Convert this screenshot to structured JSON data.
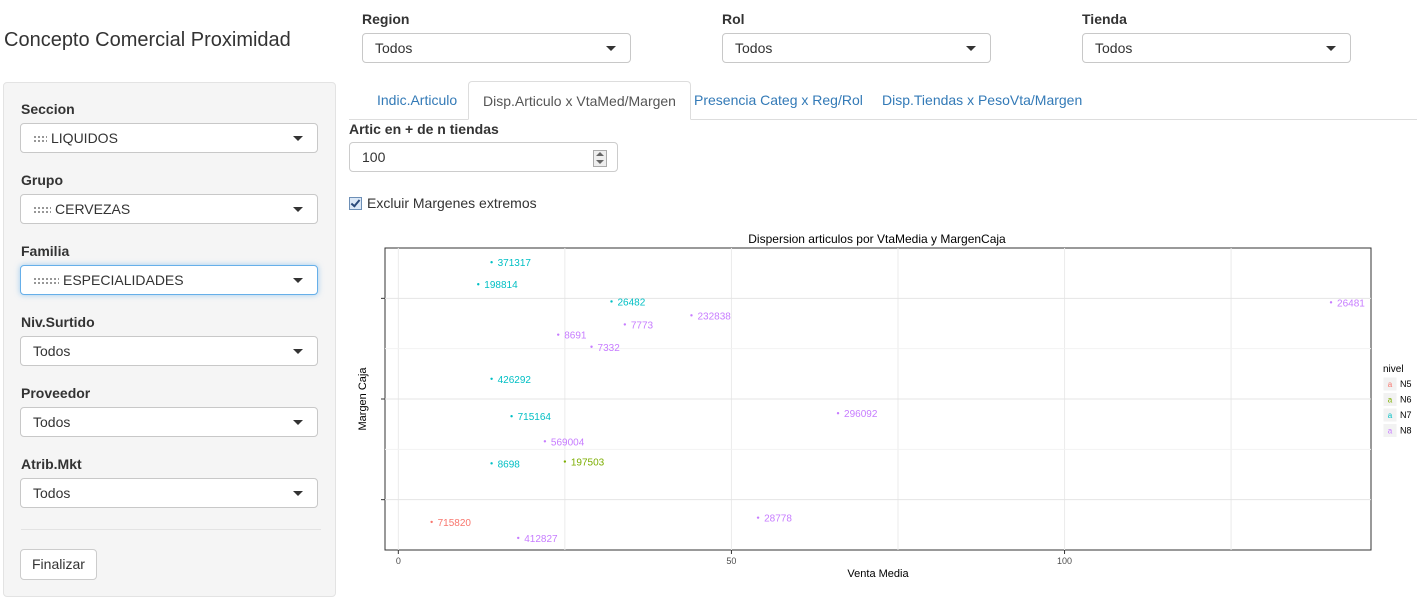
{
  "app_title": "Concepto Comercial Proximidad",
  "top_filters": {
    "region": {
      "label": "Region",
      "value": "Todos"
    },
    "rol": {
      "label": "Rol",
      "value": "Todos"
    },
    "tienda": {
      "label": "Tienda",
      "value": "Todos"
    }
  },
  "sidebar": {
    "seccion": {
      "label": "Seccion",
      "value": "LIQUIDOS"
    },
    "grupo": {
      "label": "Grupo",
      "value": "CERVEZAS"
    },
    "familia": {
      "label": "Familia",
      "value": "ESPECIALIDADES"
    },
    "surtido": {
      "label": "Niv.Surtido",
      "value": "Todos"
    },
    "proveedor": {
      "label": "Proveedor",
      "value": "Todos"
    },
    "atrib": {
      "label": "Atrib.Mkt",
      "value": "Todos"
    },
    "finalizar": "Finalizar"
  },
  "tabs": [
    {
      "label": "Indic.Articulo",
      "active": false
    },
    {
      "label": "Disp.Articulo x VtaMed/Margen",
      "active": true
    },
    {
      "label": "Presencia Categ x Reg/Rol",
      "active": false
    },
    {
      "label": "Disp.Tiendas x PesoVta/Margen",
      "active": false
    }
  ],
  "min_tiendas": {
    "label": "Artic en + de n tiendas",
    "value": "100"
  },
  "excluir": {
    "label": "Excluir Margenes extremos",
    "checked": true
  },
  "colors": {
    "N5": "#f8766d",
    "N6": "#7cae00",
    "N7": "#00bfc4",
    "N8": "#c77cff"
  },
  "chart_data": {
    "type": "scatter",
    "title": "Dispersion articulos por VtaMedia y MargenCaja",
    "xlabel": "Venta Media",
    "ylabel": "Margen Caja",
    "xticks": [
      0,
      50,
      100
    ],
    "xlim": [
      -2,
      146
    ],
    "ylim": [
      0,
      1
    ],
    "y_tick_labels_visible": false,
    "y_positions_are_relative": true,
    "grid": true,
    "legend": {
      "title": "nivel",
      "entries": [
        "N5",
        "N6",
        "N7",
        "N8"
      ],
      "position": "right"
    },
    "points": [
      {
        "label": "371317",
        "x": 14,
        "y": 0.953,
        "nivel": "N7"
      },
      {
        "label": "198814",
        "x": 12,
        "y": 0.88,
        "nivel": "N7"
      },
      {
        "label": "26482",
        "x": 32,
        "y": 0.823,
        "nivel": "N7"
      },
      {
        "label": "26481",
        "x": 140,
        "y": 0.82,
        "nivel": "N8"
      },
      {
        "label": "232838",
        "x": 44,
        "y": 0.777,
        "nivel": "N8"
      },
      {
        "label": "7773",
        "x": 34,
        "y": 0.747,
        "nivel": "N8"
      },
      {
        "label": "8691",
        "x": 24,
        "y": 0.713,
        "nivel": "N8"
      },
      {
        "label": "7332",
        "x": 29,
        "y": 0.673,
        "nivel": "N8"
      },
      {
        "label": "426292",
        "x": 14,
        "y": 0.567,
        "nivel": "N7"
      },
      {
        "label": "296092",
        "x": 66,
        "y": 0.453,
        "nivel": "N8"
      },
      {
        "label": "715164",
        "x": 17,
        "y": 0.443,
        "nivel": "N7"
      },
      {
        "label": "569004",
        "x": 22,
        "y": 0.36,
        "nivel": "N8"
      },
      {
        "label": "197503",
        "x": 25,
        "y": 0.293,
        "nivel": "N6"
      },
      {
        "label": "8698",
        "x": 14,
        "y": 0.287,
        "nivel": "N7"
      },
      {
        "label": "28778",
        "x": 54,
        "y": 0.107,
        "nivel": "N8"
      },
      {
        "label": "715820",
        "x": 5,
        "y": 0.093,
        "nivel": "N5"
      },
      {
        "label": "412827",
        "x": 18,
        "y": 0.04,
        "nivel": "N8"
      }
    ]
  }
}
